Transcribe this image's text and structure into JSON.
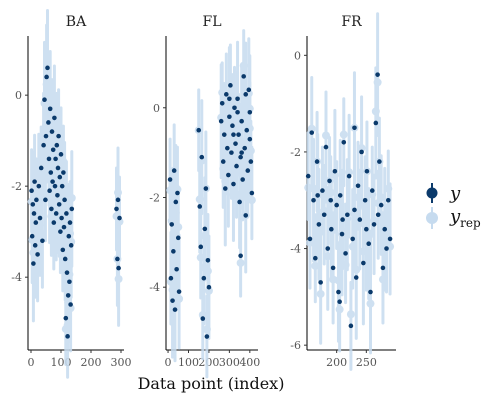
{
  "chart_data": {
    "type": "scatter",
    "xlabel": "Data point (index)",
    "ylabel": "",
    "legend": {
      "placement": "right",
      "entries": [
        {
          "key": "y",
          "label": "y",
          "subscript": "",
          "color": "#0b3a6b"
        },
        {
          "key": "yrep",
          "label": "y",
          "subscript": "rep",
          "color": "#c6dbef"
        }
      ]
    },
    "colors": {
      "y": "#0b3a6b",
      "yrep": "#c6dbef",
      "interval": "#c6dbef"
    },
    "panels": [
      {
        "title": "BA",
        "xlim": [
          -10,
          310
        ],
        "ylim": [
          -5.6,
          1.3
        ],
        "xticks": [
          0,
          100,
          200,
          300
        ],
        "xtick_labels": [
          "0",
          "100",
          "200",
          "300"
        ],
        "yticks": [
          -4,
          -2,
          0
        ],
        "ytick_labels": [
          "-4",
          "-2",
          "0"
        ],
        "points": [
          [
            2,
            -2.1
          ],
          [
            4,
            -3.1
          ],
          [
            6,
            -2.4
          ],
          [
            8,
            -3.7
          ],
          [
            10,
            -2.6
          ],
          [
            12,
            -1.9
          ],
          [
            14,
            -3.3
          ],
          [
            16,
            -2.8
          ],
          [
            18,
            -2.3
          ],
          [
            22,
            -3.5
          ],
          [
            26,
            -2.0
          ],
          [
            30,
            -2.7
          ],
          [
            34,
            -1.6
          ],
          [
            38,
            -3.2
          ],
          [
            42,
            -1.1
          ],
          [
            45,
            -0.1
          ],
          [
            48,
            -2.3
          ],
          [
            50,
            -0.9
          ],
          [
            52,
            0.4
          ],
          [
            55,
            0.6
          ],
          [
            58,
            -0.6
          ],
          [
            60,
            -1.4
          ],
          [
            62,
            -2.1
          ],
          [
            64,
            -0.3
          ],
          [
            66,
            -1.7
          ],
          [
            68,
            -2.5
          ],
          [
            70,
            -0.8
          ],
          [
            72,
            -1.9
          ],
          [
            74,
            -1.2
          ],
          [
            76,
            -2.8
          ],
          [
            78,
            -0.5
          ],
          [
            80,
            -2.0
          ],
          [
            82,
            -1.4
          ],
          [
            84,
            -2.6
          ],
          [
            86,
            -1.1
          ],
          [
            88,
            -2.2
          ],
          [
            90,
            -1.6
          ],
          [
            92,
            -0.9
          ],
          [
            94,
            -2.4
          ],
          [
            96,
            -1.8
          ],
          [
            98,
            -3.0
          ],
          [
            100,
            -1.3
          ],
          [
            102,
            -2.7
          ],
          [
            104,
            -2.0
          ],
          [
            106,
            -3.4
          ],
          [
            108,
            -1.7
          ],
          [
            110,
            -2.9
          ],
          [
            112,
            -2.3
          ],
          [
            114,
            -3.6
          ],
          [
            116,
            -4.9
          ],
          [
            118,
            -2.6
          ],
          [
            120,
            -3.9
          ],
          [
            122,
            -5.3
          ],
          [
            124,
            -4.4
          ],
          [
            126,
            -3.1
          ],
          [
            128,
            -4.1
          ],
          [
            130,
            -2.8
          ],
          [
            132,
            -4.6
          ],
          [
            134,
            -3.3
          ],
          [
            136,
            -2.5
          ],
          [
            285,
            -2.5
          ],
          [
            288,
            -3.6
          ],
          [
            290,
            -2.3
          ],
          [
            292,
            -3.8
          ],
          [
            295,
            -2.7
          ]
        ]
      },
      {
        "title": "FL",
        "xlim": [
          -10,
          440
        ],
        "ylim": [
          -5.4,
          1.6
        ],
        "xticks": [
          0,
          100,
          200,
          300,
          400
        ],
        "xtick_labels": [
          "0",
          "100",
          "200",
          "300",
          "400"
        ],
        "yticks": [
          -4,
          -2,
          0
        ],
        "ytick_labels": [
          "-4",
          "-2",
          "0"
        ],
        "points": [
          [
            10,
            -1.6
          ],
          [
            14,
            -3.8
          ],
          [
            18,
            -2.6
          ],
          [
            22,
            -4.3
          ],
          [
            26,
            -3.2
          ],
          [
            30,
            -1.4
          ],
          [
            34,
            -4.5
          ],
          [
            38,
            -2.1
          ],
          [
            42,
            -3.6
          ],
          [
            46,
            -1.9
          ],
          [
            50,
            -2.9
          ],
          [
            54,
            -4.1
          ],
          [
            150,
            -0.5
          ],
          [
            155,
            -2.2
          ],
          [
            160,
            -3.1
          ],
          [
            165,
            -1.1
          ],
          [
            170,
            -4.7
          ],
          [
            175,
            -3.8
          ],
          [
            180,
            -2.7
          ],
          [
            185,
            -1.8
          ],
          [
            190,
            -5.1
          ],
          [
            195,
            -3.4
          ],
          [
            200,
            -4.0
          ],
          [
            260,
            -0.3
          ],
          [
            265,
            0.1
          ],
          [
            270,
            -1.2
          ],
          [
            275,
            -0.6
          ],
          [
            280,
            -1.8
          ],
          [
            285,
            0.3
          ],
          [
            290,
            -0.9
          ],
          [
            295,
            -1.5
          ],
          [
            300,
            -0.2
          ],
          [
            305,
            0.5
          ],
          [
            310,
            -1.0
          ],
          [
            315,
            -0.4
          ],
          [
            320,
            -1.7
          ],
          [
            325,
            0.0
          ],
          [
            330,
            -0.8
          ],
          [
            335,
            -1.3
          ],
          [
            340,
            0.2
          ],
          [
            345,
            -0.6
          ],
          [
            350,
            -2.1
          ],
          [
            355,
            -1.1
          ],
          [
            360,
            -0.3
          ],
          [
            365,
            -1.6
          ],
          [
            370,
            0.7
          ],
          [
            375,
            -0.9
          ],
          [
            380,
            -2.4
          ],
          [
            385,
            -0.5
          ],
          [
            390,
            -1.4
          ],
          [
            395,
            0.4
          ],
          [
            400,
            -0.1
          ],
          [
            405,
            -1.2
          ],
          [
            410,
            -1.9
          ],
          [
            300,
            0.2
          ],
          [
            320,
            -0.6
          ],
          [
            340,
            -0.1
          ],
          [
            360,
            -1.0
          ],
          [
            380,
            0.3
          ],
          [
            400,
            -0.7
          ],
          [
            355,
            -3.3
          ]
        ]
      },
      {
        "title": "FR",
        "xlim": [
          150,
          300
        ],
        "ylim": [
          -6.1,
          0.4
        ],
        "xticks": [
          200,
          250
        ],
        "xtick_labels": [
          "200",
          "250"
        ],
        "yticks": [
          -6,
          -4,
          -2,
          0
        ],
        "ytick_labels": [
          "-6",
          "-4",
          "-2",
          "0"
        ],
        "points": [
          [
            152,
            -2.5
          ],
          [
            155,
            -3.8
          ],
          [
            158,
            -1.6
          ],
          [
            161,
            -3.0
          ],
          [
            164,
            -4.2
          ],
          [
            167,
            -2.2
          ],
          [
            170,
            -3.5
          ],
          [
            173,
            -4.7
          ],
          [
            176,
            -2.8
          ],
          [
            179,
            -3.3
          ],
          [
            182,
            -1.9
          ],
          [
            185,
            -4.0
          ],
          [
            188,
            -2.6
          ],
          [
            191,
            -3.6
          ],
          [
            194,
            -4.4
          ],
          [
            197,
            -2.4
          ],
          [
            200,
            -3.1
          ],
          [
            203,
            -4.9
          ],
          [
            206,
            -2.9
          ],
          [
            209,
            -3.7
          ],
          [
            212,
            -1.8
          ],
          [
            215,
            -4.1
          ],
          [
            218,
            -3.3
          ],
          [
            221,
            -2.5
          ],
          [
            224,
            -5.6
          ],
          [
            227,
            -3.8
          ],
          [
            230,
            -1.5
          ],
          [
            233,
            -4.6
          ],
          [
            236,
            -2.7
          ],
          [
            239,
            -3.4
          ],
          [
            242,
            -2.0
          ],
          [
            245,
            -4.3
          ],
          [
            248,
            -3.0
          ],
          [
            251,
            -2.4
          ],
          [
            254,
            -3.9
          ],
          [
            257,
            -4.9
          ],
          [
            260,
            -2.8
          ],
          [
            263,
            -3.5
          ],
          [
            266,
            -1.4
          ],
          [
            269,
            -0.4
          ],
          [
            272,
            -2.2
          ],
          [
            275,
            -3.1
          ],
          [
            278,
            -4.4
          ],
          [
            281,
            -3.6
          ],
          [
            284,
            -4.0
          ],
          [
            287,
            -3.0
          ],
          [
            290,
            -3.8
          ],
          [
            168,
            -2.9
          ],
          [
            190,
            -3.0
          ],
          [
            210,
            -3.4
          ],
          [
            230,
            -3.2
          ],
          [
            250,
            -3.6
          ],
          [
            270,
            -3.3
          ],
          [
            205,
            -5.1
          ]
        ]
      }
    ]
  }
}
